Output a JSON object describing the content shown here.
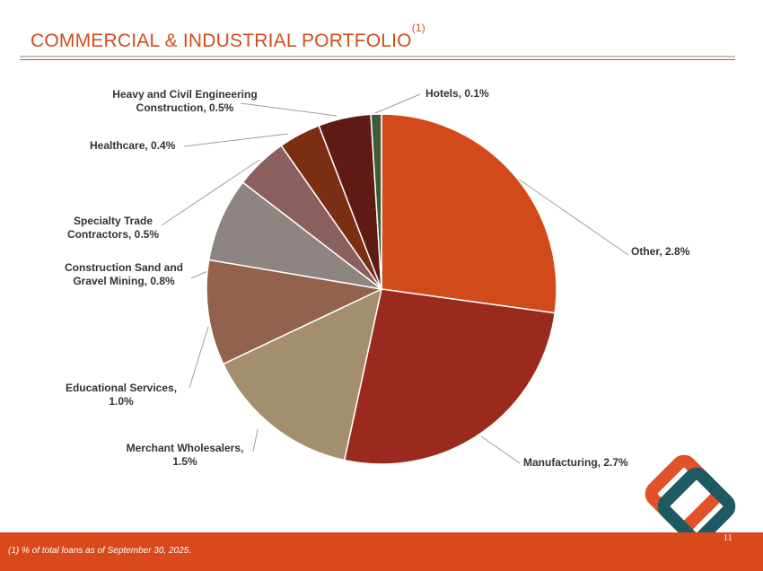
{
  "slide": {
    "title": "COMMERCIAL & INDUSTRIAL PORTFOLIO",
    "title_sup": "(1)",
    "footnote": "(1)  % of total loans as of September 30, 2025.",
    "page_number": "11"
  },
  "chart_data": {
    "type": "pie",
    "title": "COMMERCIAL & INDUSTRIAL PORTFOLIO",
    "unit": "% of total loans",
    "start_angle_deg": 0,
    "direction": "clockwise",
    "slices": [
      {
        "label": "Other, 2.8%",
        "name": "Other",
        "value": 2.8,
        "color": "#d24a19"
      },
      {
        "label": "Manufacturing, 2.7%",
        "name": "Manufacturing",
        "value": 2.7,
        "color": "#9a2a1e"
      },
      {
        "label": "Merchant Wholesalers, 1.5%",
        "name": "Merchant Wholesalers",
        "value": 1.5,
        "color": "#a38f6e"
      },
      {
        "label": "Educational Services, 1.0%",
        "name": "Educational Services",
        "value": 1.0,
        "color": "#92624f"
      },
      {
        "label": "Construction Sand and Gravel Mining, 0.8%",
        "name": "Construction Sand and Gravel Mining",
        "value": 0.8,
        "color": "#8e8482"
      },
      {
        "label": "Specialty Trade Contractors, 0.5%",
        "name": "Specialty Trade Contractors",
        "value": 0.5,
        "color": "#8b5f5d"
      },
      {
        "label": "Healthcare, 0.4%",
        "name": "Healthcare",
        "value": 0.4,
        "color": "#7c2e12"
      },
      {
        "label": "Heavy and Civil Engineering Construction, 0.5%",
        "name": "Heavy and Civil Engineering Construction",
        "value": 0.5,
        "color": "#5e1b16"
      },
      {
        "label": "Hotels, 0.1%",
        "name": "Hotels",
        "value": 0.1,
        "color": "#3f5a3a"
      }
    ]
  },
  "labels": {
    "other": "Other, 2.8%",
    "manufacturing": "Manufacturing, 2.7%",
    "merchant_1": "Merchant Wholesalers,",
    "merchant_2": "1.5%",
    "educational_1": "Educational Services,",
    "educational_2": "1.0%",
    "sand_1": "Construction Sand and",
    "sand_2": "Gravel Mining, 0.8%",
    "specialty_1": "Specialty Trade",
    "specialty_2": "Contractors, 0.5%",
    "healthcare": "Healthcare, 0.4%",
    "heavy_1": "Heavy and Civil Engineering",
    "heavy_2": "Construction, 0.5%",
    "hotels": "Hotels, 0.1%"
  },
  "logo": {
    "outer_color": "#e2522a",
    "inner_color": "#1d5a63",
    "icon": "diamond-logo"
  }
}
